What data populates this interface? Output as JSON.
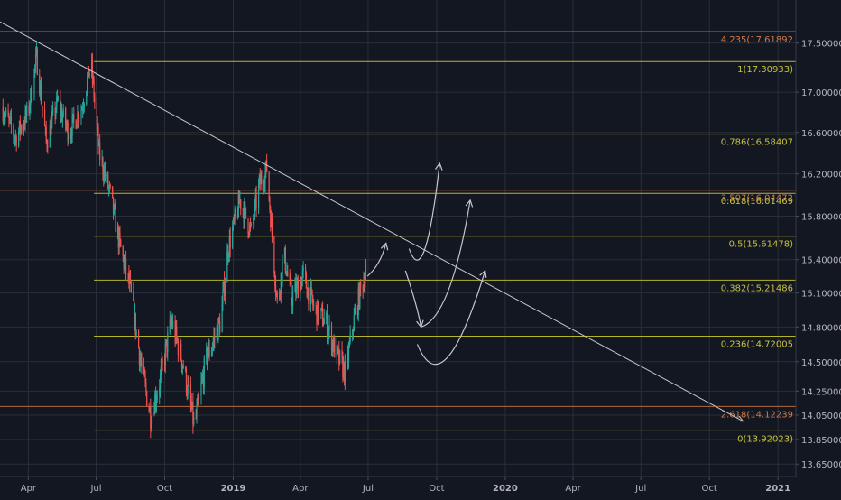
{
  "colors": {
    "background": "#131722",
    "grid": "#2a2e39",
    "axis_text": "#b2b5be",
    "fib_line": "#b5b52a",
    "fib_line_extension": "#b5683a",
    "fib_text": "#c7c23e",
    "fib_text_extension": "#d07a46",
    "candle_up": "#26a69a",
    "candle_down": "#ef5350",
    "trendline": "#c4c7cf",
    "arrows": "#c4c7cf"
  },
  "chart_data": {
    "type": "candlestick",
    "title": "",
    "xlabel": "",
    "ylabel": "",
    "grid": true,
    "x_axis": {
      "range": [
        "2018-02-22",
        "2021-01-25"
      ],
      "ticks": [
        {
          "label": "Apr",
          "date": "2018-04-01",
          "bold": false
        },
        {
          "label": "Jul",
          "date": "2018-07-01",
          "bold": false
        },
        {
          "label": "Oct",
          "date": "2018-10-01",
          "bold": false
        },
        {
          "label": "2019",
          "date": "2019-01-01",
          "bold": true
        },
        {
          "label": "Apr",
          "date": "2019-04-01",
          "bold": false
        },
        {
          "label": "Jul",
          "date": "2019-07-01",
          "bold": false
        },
        {
          "label": "Oct",
          "date": "2019-10-01",
          "bold": false
        },
        {
          "label": "2020",
          "date": "2020-01-01",
          "bold": true
        },
        {
          "label": "Apr",
          "date": "2020-04-01",
          "bold": false
        },
        {
          "label": "Jul",
          "date": "2020-07-01",
          "bold": false
        },
        {
          "label": "Oct",
          "date": "2020-10-01",
          "bold": false
        },
        {
          "label": "2021",
          "date": "2021-01-01",
          "bold": true
        }
      ]
    },
    "y_axis": {
      "scale": "log",
      "range": [
        13.55,
        17.95
      ],
      "position": "right",
      "ticks": [
        "17.50000",
        "17.00000",
        "16.60000",
        "16.20000",
        "15.80000",
        "15.40000",
        "15.10000",
        "14.80000",
        "14.50000",
        "14.25000",
        "14.05000",
        "13.85000",
        "13.65000"
      ]
    },
    "fibonacci": {
      "start_date": "2018-06-28",
      "levels": [
        {
          "ratio": "4.235",
          "price": 17.61892,
          "label": "4.235(17.61892",
          "extension": true
        },
        {
          "ratio": "1",
          "price": 17.30933,
          "label": "1(17.30933)",
          "extension": false
        },
        {
          "ratio": "0.786",
          "price": 16.58407,
          "label": "0.786(16.58407",
          "extension": false
        },
        {
          "ratio": "3.507",
          "price": 16.04472,
          "label": "3.507(16.04472",
          "extension": true
        },
        {
          "ratio": "0.618",
          "price": 16.01469,
          "label": "0.618(16.01469",
          "extension": false
        },
        {
          "ratio": "0.5",
          "price": 15.61478,
          "label": "0.5(15.61478)",
          "extension": false
        },
        {
          "ratio": "0.382",
          "price": 15.21486,
          "label": "0.382(15.21486",
          "extension": false
        },
        {
          "ratio": "0.236",
          "price": 14.72005,
          "label": "0.236(14.72005",
          "extension": false
        },
        {
          "ratio": "2.618",
          "price": 14.12239,
          "label": "2.618(14.12239",
          "extension": true
        },
        {
          "ratio": "0",
          "price": 13.92023,
          "label": "0(13.92023)",
          "extension": false
        }
      ]
    },
    "trendline": {
      "from": {
        "date": "2018-02-22",
        "price": 17.72
      },
      "to": {
        "date": "2020-11-15",
        "price": 14.0
      }
    },
    "price_path": [
      {
        "date": "2018-02-24",
        "price": 16.85
      },
      {
        "date": "2018-03-15",
        "price": 16.55
      },
      {
        "date": "2018-04-01",
        "price": 16.8
      },
      {
        "date": "2018-04-12",
        "price": 17.35
      },
      {
        "date": "2018-04-25",
        "price": 16.5
      },
      {
        "date": "2018-05-10",
        "price": 16.9
      },
      {
        "date": "2018-05-25",
        "price": 16.6
      },
      {
        "date": "2018-06-12",
        "price": 16.85
      },
      {
        "date": "2018-06-24",
        "price": 17.31
      },
      {
        "date": "2018-07-05",
        "price": 16.4
      },
      {
        "date": "2018-07-20",
        "price": 16.0
      },
      {
        "date": "2018-08-01",
        "price": 15.55
      },
      {
        "date": "2018-08-15",
        "price": 15.15
      },
      {
        "date": "2018-09-01",
        "price": 14.4
      },
      {
        "date": "2018-09-12",
        "price": 14.05
      },
      {
        "date": "2018-09-25",
        "price": 14.35
      },
      {
        "date": "2018-10-10",
        "price": 14.85
      },
      {
        "date": "2018-10-25",
        "price": 14.5
      },
      {
        "date": "2018-11-10",
        "price": 13.95
      },
      {
        "date": "2018-11-25",
        "price": 14.5
      },
      {
        "date": "2018-12-15",
        "price": 14.85
      },
      {
        "date": "2018-12-25",
        "price": 15.5
      },
      {
        "date": "2019-01-10",
        "price": 15.95
      },
      {
        "date": "2019-01-25",
        "price": 15.65
      },
      {
        "date": "2019-02-05",
        "price": 16.1
      },
      {
        "date": "2019-02-15",
        "price": 16.25
      },
      {
        "date": "2019-03-01",
        "price": 15.0
      },
      {
        "date": "2019-03-10",
        "price": 15.45
      },
      {
        "date": "2019-03-20",
        "price": 15.05
      },
      {
        "date": "2019-04-05",
        "price": 15.25
      },
      {
        "date": "2019-04-20",
        "price": 14.95
      },
      {
        "date": "2019-05-05",
        "price": 14.85
      },
      {
        "date": "2019-05-20",
        "price": 14.55
      },
      {
        "date": "2019-06-01",
        "price": 14.4
      },
      {
        "date": "2019-06-10",
        "price": 14.8
      },
      {
        "date": "2019-06-20",
        "price": 15.1
      },
      {
        "date": "2019-06-28",
        "price": 15.3
      }
    ],
    "projection_arrows": [
      {
        "from": {
          "date": "2019-06-30",
          "price": 15.25
        },
        "to": {
          "date": "2019-07-25",
          "price": 15.55
        }
      },
      {
        "from": {
          "date": "2019-08-25",
          "price": 15.5
        },
        "to": {
          "date": "2019-09-15",
          "price": 15.3
        },
        "then": {
          "date": "2019-10-05",
          "price": 16.3
        }
      },
      {
        "from": {
          "date": "2019-08-20",
          "price": 15.3
        },
        "to": {
          "date": "2019-09-10",
          "price": 14.8
        }
      },
      {
        "from": {
          "date": "2019-09-10",
          "price": 14.8
        },
        "to": {
          "date": "2019-10-20",
          "price": 15.0
        },
        "then": {
          "date": "2019-11-15",
          "price": 15.95
        }
      },
      {
        "from": {
          "date": "2019-09-05",
          "price": 14.65
        },
        "to": {
          "date": "2019-10-10",
          "price": 14.3
        },
        "then": {
          "date": "2019-12-05",
          "price": 15.3
        }
      }
    ]
  }
}
